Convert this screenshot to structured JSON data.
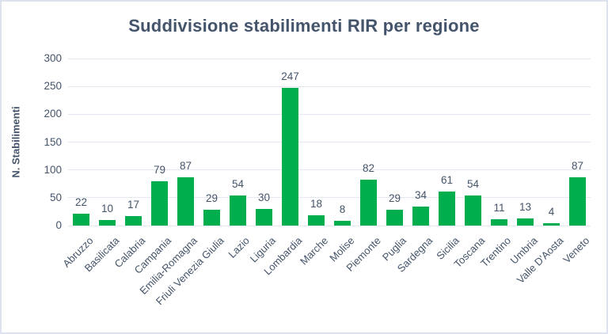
{
  "chart_data": {
    "type": "bar",
    "title": "Suddivisione stabilimenti RIR per regione",
    "xlabel": "",
    "ylabel": "N. Stabilimenti",
    "categories": [
      "Abruzzo",
      "Basilicata",
      "Calabria",
      "Campania",
      "Emilia-Romagna",
      "Friuli Venezia Giulia",
      "Lazio",
      "Liguria",
      "Lombardia",
      "Marche",
      "Molise",
      "Piemonte",
      "Puglia",
      "Sardegna",
      "Sicilia",
      "Toscana",
      "Trentino",
      "Umbria",
      "Valle D'Aosta",
      "Veneto"
    ],
    "values": [
      22,
      10,
      17,
      79,
      87,
      29,
      54,
      30,
      247,
      18,
      8,
      82,
      29,
      34,
      61,
      54,
      11,
      13,
      4,
      87
    ],
    "ylim": [
      0,
      300
    ],
    "yticks": [
      0,
      50,
      100,
      150,
      200,
      250,
      300
    ],
    "grid": true,
    "legend": "none",
    "data_labels": true,
    "colors": {
      "bar": "#00AE4D",
      "text": "#44546A",
      "gridline": "#e3e7f0",
      "background": "#ffffff",
      "frame_border": "#dee2ef"
    }
  }
}
